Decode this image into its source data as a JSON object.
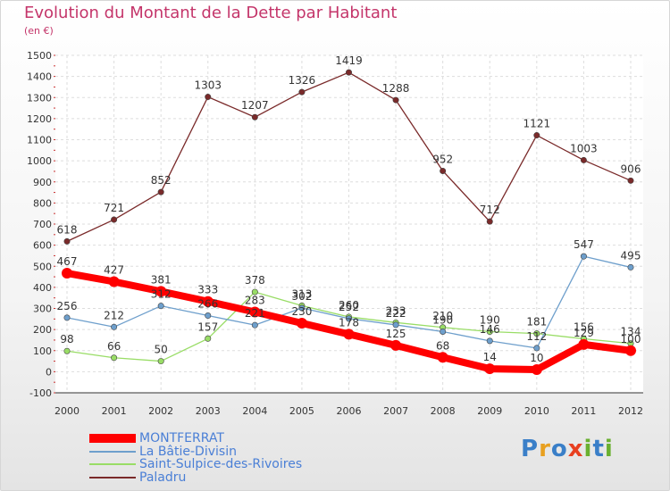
{
  "title": "Evolution du Montant de la Dette par Habitant",
  "subtitle": "(en €)",
  "logo": {
    "letters": [
      "P",
      "r",
      "o",
      "x",
      "i",
      "t",
      "i"
    ],
    "colors": [
      "#3a7fc8",
      "#e8a020",
      "#3a7fc8",
      "#e84020",
      "#6ab030",
      "#3a7fc8",
      "#6ab030"
    ]
  },
  "chart_data": {
    "type": "line",
    "title": "Evolution du Montant de la Dette par Habitant",
    "ylabel": "(en €)",
    "xlabel": "",
    "categories": [
      "2000",
      "2001",
      "2002",
      "2003",
      "2004",
      "2005",
      "2006",
      "2007",
      "2008",
      "2009",
      "2010",
      "2011",
      "2012"
    ],
    "ylim": [
      -100,
      1500
    ],
    "yticks": [
      -100,
      0,
      100,
      200,
      300,
      400,
      500,
      600,
      700,
      800,
      900,
      1000,
      1100,
      1200,
      1300,
      1400,
      1500
    ],
    "grid": true,
    "legend_position": "bottom-left",
    "series": [
      {
        "name": "MONTFERRAT",
        "color": "#ff0000",
        "values": [
          467,
          427,
          381,
          333,
          283,
          230,
          178,
          125,
          68,
          14,
          10,
          129,
          100
        ],
        "labels": [
          "467",
          "427",
          "381",
          "333",
          "283",
          "230",
          "178",
          "125",
          "68",
          "14",
          "10",
          "129",
          "100"
        ]
      },
      {
        "name": "La Bâtie-Divisin",
        "color": "#6e9fcc",
        "values": [
          256,
          212,
          312,
          266,
          221,
          302,
          252,
          222,
          190,
          146,
          112,
          547,
          495
        ],
        "labels": [
          "256",
          "212",
          "312",
          "266",
          "221",
          "302",
          "252",
          "222",
          "190",
          "146",
          "112",
          "547",
          "495"
        ]
      },
      {
        "name": "Saint-Sulpice-des-Rivoires",
        "color": "#99dd66",
        "values": [
          98,
          66,
          50,
          157,
          378,
          313,
          260,
          233,
          210,
          190,
          181,
          156,
          134
        ],
        "labels": [
          "98",
          "66",
          "50",
          "157",
          "378",
          "313",
          "260",
          "233",
          "210",
          "190",
          "181",
          "156",
          "134"
        ]
      },
      {
        "name": "Paladru",
        "color": "#7a2a2a",
        "values": [
          618,
          721,
          852,
          1303,
          1207,
          1326,
          1419,
          1288,
          952,
          712,
          1121,
          1003,
          906
        ],
        "labels": [
          "618",
          "721",
          "852",
          "1303",
          "1207",
          "1326",
          "1419",
          "1288",
          "952",
          "712",
          "1121",
          "1003",
          "906"
        ]
      }
    ]
  }
}
